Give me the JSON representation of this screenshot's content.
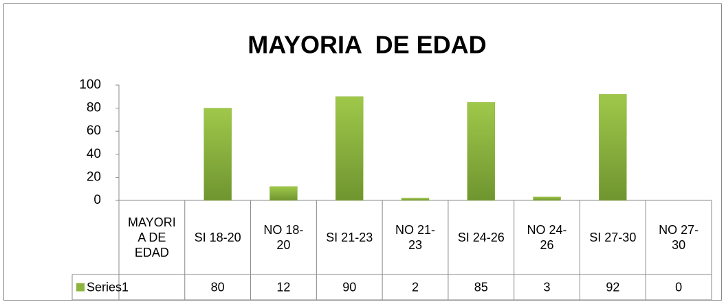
{
  "chart_data": {
    "type": "bar",
    "title": "MAYORIA  DE EDAD",
    "categories": [
      "MAYORIA DE EDAD",
      "SI 18-20",
      "NO 18-20",
      "SI 21-23",
      "NO 21-23",
      "SI 24-26",
      "NO 24-26",
      "SI 27-30",
      "NO 27-30"
    ],
    "series": [
      {
        "name": "Series1",
        "color": "#8db43e",
        "values": [
          null,
          80,
          12,
          90,
          2,
          85,
          3,
          92,
          0
        ]
      }
    ],
    "ylim": [
      0,
      100
    ],
    "yticks": [
      0,
      20,
      40,
      60,
      80,
      100
    ],
    "grid": false,
    "data_table": true
  }
}
